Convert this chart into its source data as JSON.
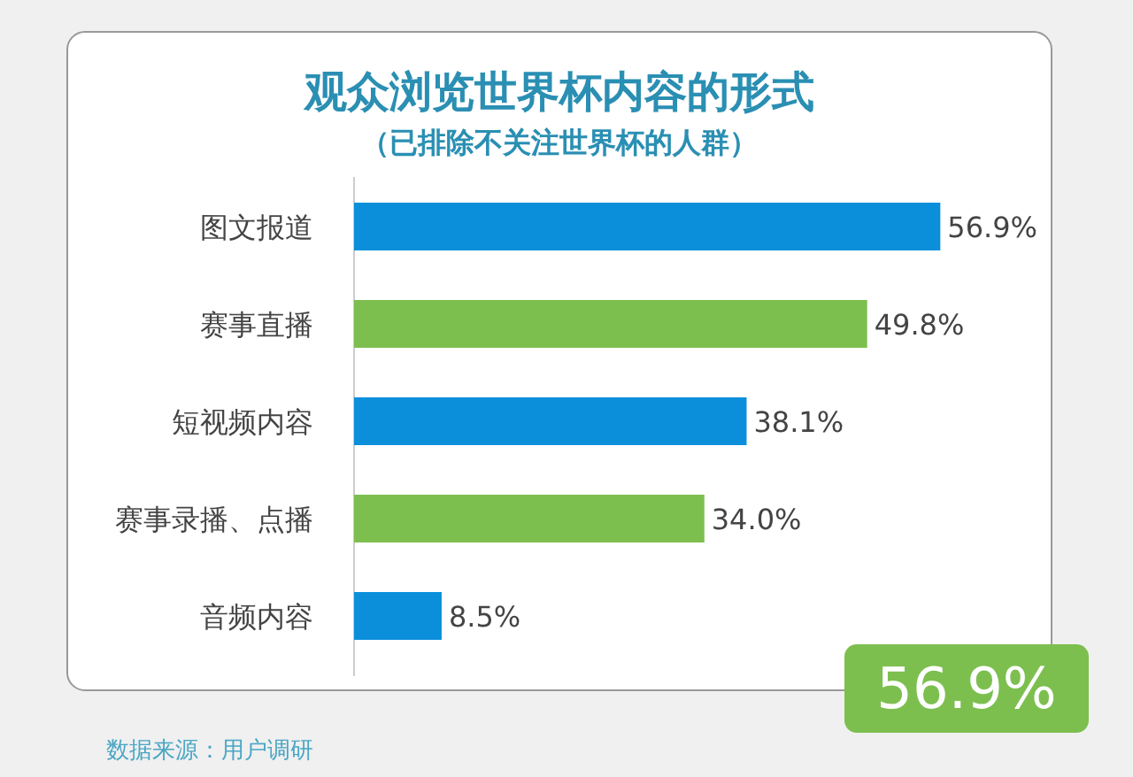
{
  "chart_data": {
    "type": "bar",
    "orientation": "horizontal",
    "title": "观众浏览世界杯内容的形式",
    "subtitle": "（已排除不关注世界杯的人群）",
    "categories": [
      "图文报道",
      "赛事直播",
      "短视频内容",
      "赛事录播、点播",
      "音频内容"
    ],
    "values": [
      56.9,
      49.8,
      38.1,
      34.0,
      8.5
    ],
    "value_labels": [
      "56.9%",
      "49.8%",
      "38.1%",
      "34.0%",
      "8.5%"
    ],
    "colors": [
      "#0b8fdb",
      "#7dbf4f",
      "#0b8fdb",
      "#7dbf4f",
      "#0b8fdb"
    ],
    "annotations": [
      "56.9%",
      "数据来源：用户调研"
    ]
  }
}
